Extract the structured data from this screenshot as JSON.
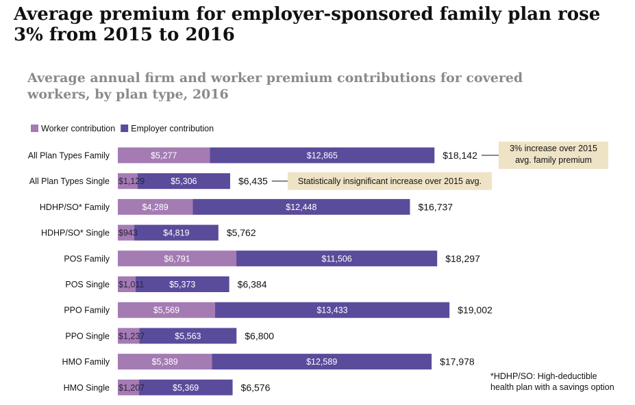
{
  "headline": "Average premium for employer-sponsored family plan rose 3% from 2015 to 2016",
  "chart_data": {
    "type": "bar",
    "orientation": "horizontal",
    "stacked": true,
    "title": "Average annual firm and worker premium contributions for covered workers, by plan type, 2016",
    "legend_position": "top-left",
    "categories": [
      "All Plan Types Family",
      "All Plan Types Single",
      "HDHP/SO* Family",
      "HDHP/SO* Single",
      "POS Family",
      "POS Single",
      "PPO Family",
      "PPO Single",
      "HMO Family",
      "HMO Single"
    ],
    "series": [
      {
        "name": "Worker contribution",
        "color": "#a47bb3",
        "values": [
          5277,
          1129,
          4289,
          943,
          6791,
          1011,
          5569,
          1237,
          5389,
          1207
        ],
        "labels": [
          "$5,277",
          "$1,129",
          "$4,289",
          "$943",
          "$6,791",
          "$1,011",
          "$5,569",
          "$1,237",
          "$5,389",
          "$1,207"
        ]
      },
      {
        "name": "Employer contribution",
        "color": "#5b4b9b",
        "values": [
          12865,
          5306,
          12448,
          4819,
          11506,
          5373,
          13433,
          5563,
          12589,
          5369
        ],
        "labels": [
          "$12,865",
          "$5,306",
          "$12,448",
          "$4,819",
          "$11,506",
          "$5,373",
          "$13,433",
          "$5,563",
          "$12,589",
          "$5,369"
        ]
      }
    ],
    "totals": [
      18142,
      6435,
      16737,
      5762,
      18297,
      6384,
      19002,
      6800,
      17978,
      6576
    ],
    "total_labels": [
      "$18,142",
      "$6,435",
      "$16,737",
      "$5,762",
      "$18,297",
      "$6,384",
      "$19,002",
      "$6,800",
      "$17,978",
      "$6,576"
    ],
    "annotations": [
      {
        "row": 0,
        "lines": [
          "3% increase over 2015",
          "avg. family premium"
        ]
      },
      {
        "row": 1,
        "lines": [
          "Statistically insignificant increase over 2015 avg."
        ]
      }
    ],
    "annotation_color": "#efe3c6"
  },
  "footnote": {
    "line1": "*HDHP/SO: High-deductible",
    "line2": "health plan with a savings option"
  }
}
